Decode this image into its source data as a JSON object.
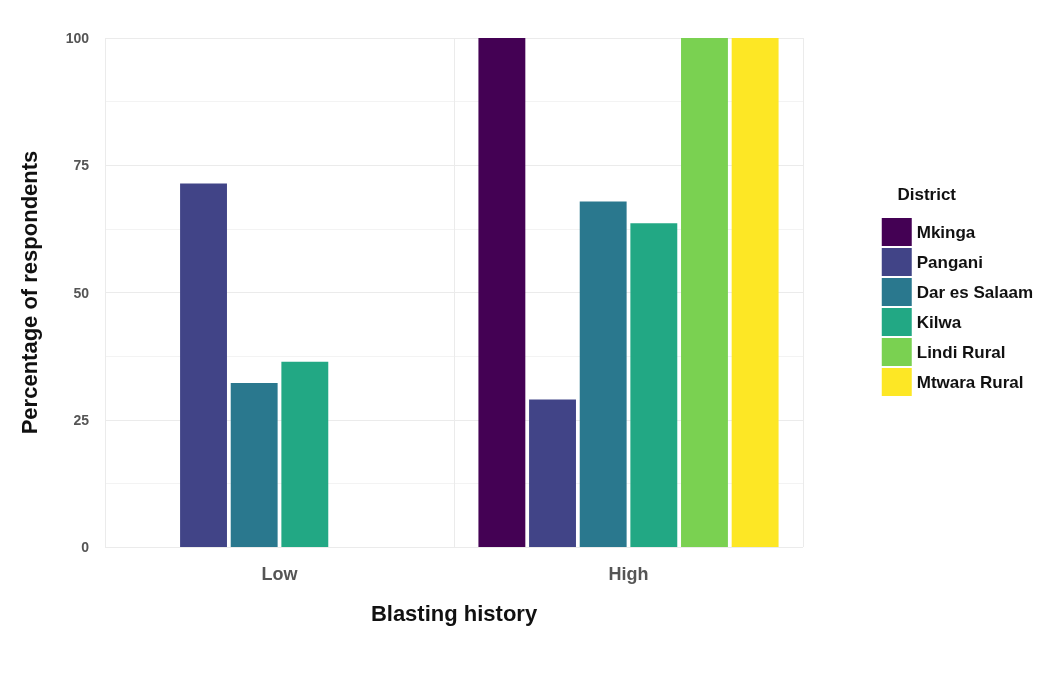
{
  "chart_data": {
    "type": "bar",
    "xlabel": "Blasting history",
    "ylabel": "Percentage of respondents",
    "legend_title": "District",
    "categories": [
      "Low",
      "High"
    ],
    "series": [
      {
        "name": "Mkinga",
        "color": "#440154",
        "values": [
          null,
          100
        ]
      },
      {
        "name": "Pangani",
        "color": "#414487",
        "values": [
          71.4,
          29
        ]
      },
      {
        "name": "Dar es Salaam",
        "color": "#2a788e",
        "values": [
          32.2,
          67.9
        ]
      },
      {
        "name": "Kilwa",
        "color": "#22a884",
        "values": [
          36.4,
          63.6
        ]
      },
      {
        "name": "Lindi Rural",
        "color": "#7ad151",
        "values": [
          null,
          100
        ]
      },
      {
        "name": "Mtwara Rural",
        "color": "#fde725",
        "values": [
          null,
          100
        ]
      }
    ],
    "ylim": [
      0,
      100
    ],
    "yticks": [
      0,
      25,
      50,
      75,
      100
    ],
    "grid": true,
    "legend": "right"
  }
}
